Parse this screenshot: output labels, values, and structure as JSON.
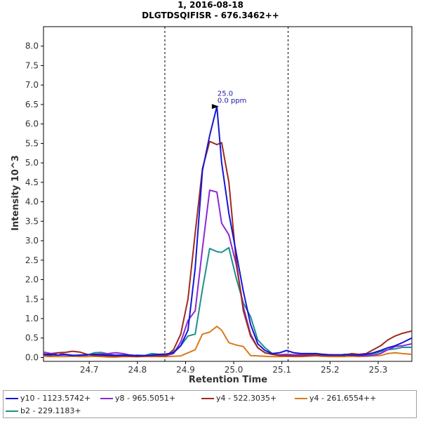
{
  "chart_data": {
    "type": "line",
    "title": "1, 2016-08-18",
    "subtitle": "DLGTDSQIFISR - 676.3462++",
    "xlabel": "Retention Time",
    "ylabel": "Intensity  10^3",
    "xlim": [
      24.605,
      25.37
    ],
    "ylim": [
      -0.1,
      8.5
    ],
    "xticks": [
      24.7,
      24.8,
      24.9,
      25.0,
      25.1,
      25.2,
      25.3
    ],
    "xtick_labels": [
      "24.7",
      "24.8",
      "24.9",
      "25.0",
      "25.1",
      "25.2",
      "25.3"
    ],
    "yticks": [
      0,
      0.5,
      1,
      1.5,
      2,
      2.5,
      3,
      3.5,
      4,
      4.5,
      5,
      5.5,
      6,
      6.5,
      7,
      7.5,
      8
    ],
    "ytick_labels": [
      "0.0",
      "0.5",
      "1.0",
      "1.5",
      "2.0",
      "2.5",
      "3.0",
      "3.5",
      "4.0",
      "4.5",
      "5.0",
      "5.5",
      "6.0",
      "6.5",
      "7.0",
      "7.5",
      "8.0"
    ],
    "grid": false,
    "legend_position": "bottom",
    "integration_bounds": [
      24.857,
      25.113
    ],
    "annotation": {
      "x": 24.975,
      "y": 6.45,
      "lines": [
        "25.0",
        "0.0 ppm"
      ]
    },
    "x": [
      24.605,
      24.62,
      24.635,
      24.65,
      24.665,
      24.68,
      24.695,
      24.71,
      24.725,
      24.74,
      24.755,
      24.77,
      24.785,
      24.8,
      24.815,
      24.83,
      24.845,
      24.86,
      24.875,
      24.89,
      24.905,
      24.92,
      24.935,
      24.95,
      24.965,
      24.975,
      24.99,
      25.005,
      25.02,
      25.035,
      25.05,
      25.065,
      25.08,
      25.095,
      25.11,
      25.125,
      25.14,
      25.155,
      25.17,
      25.185,
      25.2,
      25.215,
      25.23,
      25.245,
      25.26,
      25.275,
      25.29,
      25.305,
      25.32,
      25.335,
      25.35,
      25.37
    ],
    "series": [
      {
        "name": "y10 - 1123.5742+",
        "color": "#1515d6",
        "values": [
          0.08,
          0.08,
          0.06,
          0.07,
          0.05,
          0.06,
          0.07,
          0.08,
          0.07,
          0.06,
          0.06,
          0.06,
          0.06,
          0.05,
          0.05,
          0.06,
          0.08,
          0.09,
          0.12,
          0.3,
          0.7,
          2.3,
          4.8,
          5.7,
          6.45,
          5.0,
          3.7,
          2.7,
          1.7,
          0.85,
          0.35,
          0.18,
          0.1,
          0.12,
          0.18,
          0.12,
          0.1,
          0.1,
          0.1,
          0.08,
          0.07,
          0.07,
          0.07,
          0.06,
          0.06,
          0.08,
          0.12,
          0.18,
          0.25,
          0.3,
          0.38,
          0.5
        ]
      },
      {
        "name": "y8 - 965.5051+",
        "color": "#8a2ad4",
        "values": [
          0.14,
          0.1,
          0.12,
          0.08,
          0.06,
          0.05,
          0.07,
          0.08,
          0.09,
          0.1,
          0.12,
          0.1,
          0.06,
          0.05,
          0.05,
          0.04,
          0.05,
          0.05,
          0.1,
          0.4,
          0.95,
          1.2,
          2.8,
          4.3,
          4.25,
          3.45,
          3.15,
          2.4,
          1.3,
          0.6,
          0.25,
          0.12,
          0.08,
          0.07,
          0.08,
          0.07,
          0.07,
          0.08,
          0.1,
          0.08,
          0.07,
          0.06,
          0.06,
          0.07,
          0.05,
          0.04,
          0.06,
          0.1,
          0.2,
          0.28,
          0.3,
          0.35
        ]
      },
      {
        "name": "y4 - 522.3035+",
        "color": "#9c2a20",
        "values": [
          0.07,
          0.05,
          0.12,
          0.13,
          0.16,
          0.14,
          0.08,
          0.05,
          0.05,
          0.04,
          0.03,
          0.04,
          0.03,
          0.02,
          0.04,
          0.05,
          0.04,
          0.04,
          0.2,
          0.6,
          1.5,
          3.2,
          4.85,
          5.55,
          5.47,
          5.52,
          4.5,
          2.5,
          1.2,
          0.55,
          0.25,
          0.12,
          0.08,
          0.05,
          0.04,
          0.04,
          0.04,
          0.05,
          0.06,
          0.05,
          0.05,
          0.05,
          0.05,
          0.1,
          0.08,
          0.1,
          0.2,
          0.3,
          0.45,
          0.55,
          0.62,
          0.68
        ]
      },
      {
        "name": "y4 - 261.6554++",
        "color": "#d87a1c",
        "values": [
          0.03,
          0.02,
          0.02,
          0.02,
          0.03,
          0.02,
          0.02,
          0.03,
          0.02,
          0.01,
          0.01,
          0.02,
          0.02,
          0.02,
          0.02,
          0.02,
          0.02,
          0.02,
          0.03,
          0.04,
          0.12,
          0.2,
          0.6,
          0.65,
          0.8,
          0.7,
          0.38,
          0.32,
          0.28,
          0.05,
          0.04,
          0.03,
          0.02,
          0.02,
          0.03,
          0.02,
          0.02,
          0.03,
          0.04,
          0.03,
          0.02,
          0.02,
          0.02,
          0.03,
          0.02,
          0.03,
          0.04,
          0.05,
          0.1,
          0.12,
          0.1,
          0.08
        ]
      },
      {
        "name": "b2 - 229.1183+",
        "color": "#1e8f8a",
        "values": [
          0.1,
          0.05,
          0.06,
          0.08,
          0.05,
          0.06,
          0.05,
          0.12,
          0.13,
          0.09,
          0.05,
          0.05,
          0.04,
          0.06,
          0.05,
          0.1,
          0.08,
          0.06,
          0.15,
          0.3,
          0.55,
          0.6,
          1.75,
          2.8,
          2.72,
          2.7,
          2.82,
          2.05,
          1.4,
          1.05,
          0.45,
          0.25,
          0.1,
          0.06,
          0.07,
          0.05,
          0.05,
          0.06,
          0.1,
          0.08,
          0.06,
          0.05,
          0.08,
          0.09,
          0.06,
          0.05,
          0.1,
          0.15,
          0.2,
          0.22,
          0.26,
          0.26
        ]
      }
    ]
  }
}
